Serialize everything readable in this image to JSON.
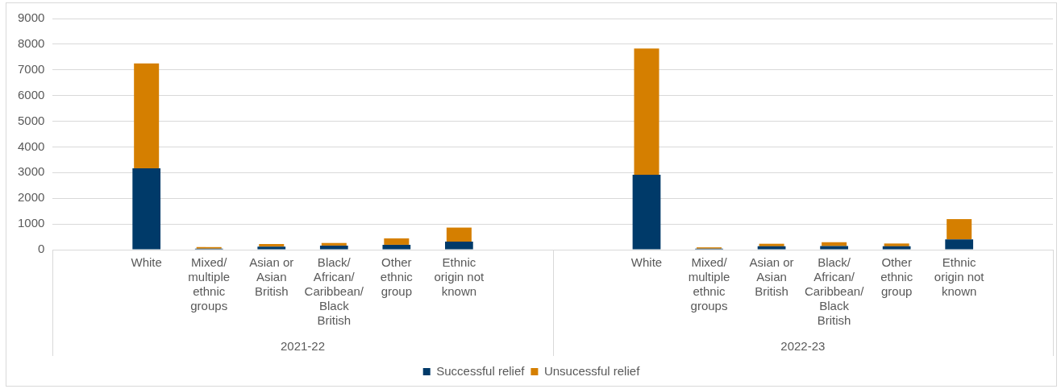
{
  "chart_data": {
    "type": "bar",
    "stacked": true,
    "categories": [
      null,
      "White",
      "Mixed/multiple ethnic groups",
      "Asian or Asian British",
      "Black/African/Caribbean/Black British",
      "Other ethnic group",
      "Ethnic origin not known",
      null,
      null,
      "White",
      "Mixed/multiple ethnic groups",
      "Asian or Asian British",
      "Black/African/Caribbean/Black British",
      "Other ethnic group",
      "Ethnic origin not known",
      null
    ],
    "series": [
      {
        "name": "Successful relief",
        "color": "#003a69",
        "values": [
          null,
          3170,
          40,
          120,
          160,
          190,
          310,
          null,
          null,
          2920,
          40,
          130,
          140,
          130,
          400,
          null
        ]
      },
      {
        "name": "Unsucessful relief",
        "color": "#d57f00",
        "values": [
          null,
          4080,
          60,
          100,
          100,
          250,
          550,
          null,
          null,
          4910,
          50,
          100,
          150,
          110,
          790,
          null
        ]
      }
    ],
    "annotations": [
      "2021-22",
      "2022-23"
    ],
    "ylim": [
      0,
      9000
    ],
    "yticks": [
      0,
      1000,
      2000,
      3000,
      4000,
      5000,
      6000,
      7000,
      8000,
      9000
    ],
    "grid": "y",
    "legend": "bottom"
  }
}
